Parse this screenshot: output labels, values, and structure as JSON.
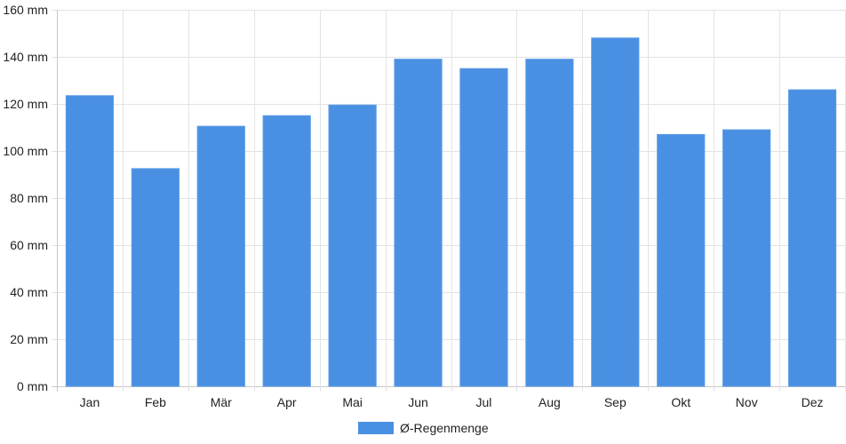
{
  "chart_data": {
    "type": "bar",
    "categories": [
      "Jan",
      "Feb",
      "Mär",
      "Apr",
      "Mai",
      "Jun",
      "Jul",
      "Aug",
      "Sep",
      "Okt",
      "Nov",
      "Dez"
    ],
    "series": [
      {
        "name": "Ø-Regenmenge",
        "values": [
          123.5,
          92.5,
          110.5,
          115,
          119.5,
          139,
          135,
          139,
          148,
          107,
          109,
          126
        ],
        "color": "#4a90e2"
      }
    ],
    "y_ticks": [
      "0 mm",
      "20 mm",
      "40 mm",
      "60 mm",
      "80 mm",
      "100 mm",
      "120 mm",
      "140 mm",
      "160 mm"
    ],
    "ylim": [
      0,
      160
    ],
    "y_step": 20,
    "grid": true,
    "legend_position": "bottom-center"
  }
}
